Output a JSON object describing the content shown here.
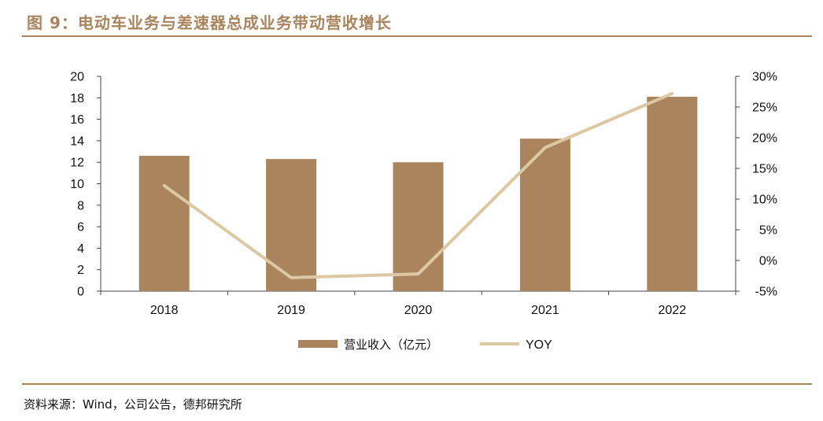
{
  "figure": {
    "title": "图 9：电动车业务与差速器总成业务带动营收增长",
    "source": "资料来源：Wind，公司公告，德邦研究所"
  },
  "colors": {
    "bar": "#a9845c",
    "line": "#dcc8a2",
    "title": "#a9845c",
    "axis": "#444444"
  },
  "chart_data": {
    "type": "bar",
    "categories": [
      "2018",
      "2019",
      "2020",
      "2021",
      "2022"
    ],
    "series": [
      {
        "name": "营业收入（亿元）",
        "type": "bar",
        "axis": "left",
        "values": [
          12.6,
          12.3,
          12.0,
          14.2,
          18.1
        ]
      },
      {
        "name": "YOY",
        "type": "line",
        "axis": "right",
        "values": [
          12.2,
          -2.8,
          -2.2,
          18.4,
          27.2
        ]
      }
    ],
    "y_left": {
      "min": 0,
      "max": 20,
      "ticks": [
        0,
        2,
        4,
        6,
        8,
        10,
        12,
        14,
        16,
        18,
        20
      ],
      "tick_labels": [
        "0",
        "2",
        "4",
        "6",
        "8",
        "10",
        "12",
        "14",
        "16",
        "18",
        "20"
      ]
    },
    "y_right": {
      "min": -5,
      "max": 30,
      "ticks": [
        -5,
        0,
        5,
        10,
        15,
        20,
        25,
        30
      ],
      "tick_labels": [
        "-5%",
        "0%",
        "5%",
        "10%",
        "15%",
        "20%",
        "25%",
        "30%"
      ]
    },
    "legend_position": "bottom",
    "grid": false
  }
}
